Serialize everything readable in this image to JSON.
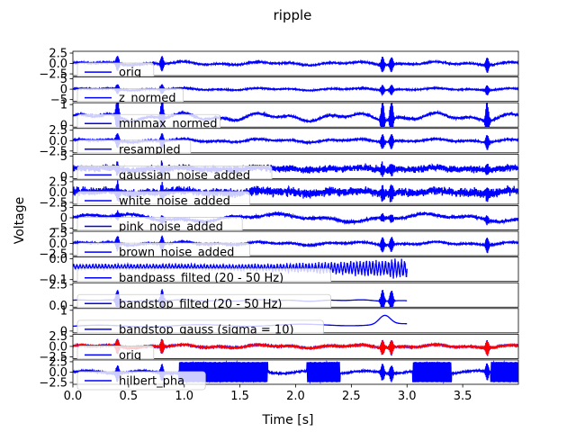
{
  "figure": {
    "title": "ripple",
    "xlabel": "Time [s]",
    "ylabel": "Voltage"
  },
  "chart_data": {
    "type": "line",
    "title": "ripple",
    "xlabel": "Time [s]",
    "ylabel": "Voltage",
    "xlim": [
      0,
      4.0
    ],
    "x_ticks": [
      "0.0",
      "0.5",
      "1.0",
      "1.5",
      "2.0",
      "2.5",
      "3.0",
      "3.5"
    ],
    "grid": false,
    "legend_placement": "lower left",
    "ripple_events_s": [
      0.4,
      0.8,
      2.78,
      2.86,
      3.72
    ],
    "panels": [
      {
        "label": "orig",
        "series_color": "#0000ff",
        "yticks": [
          "2.5",
          "0.0",
          "−2.5"
        ],
        "ylim": [
          -4,
          4
        ],
        "t_end": 4.0,
        "kind": "orig"
      },
      {
        "label": "z_normed",
        "series_color": "#0000ff",
        "yticks": [
          "5",
          "0",
          "−5"
        ],
        "ylim": [
          -6,
          6
        ],
        "t_end": 4.0,
        "kind": "orig"
      },
      {
        "label": "minmax_normed",
        "series_color": "#0000ff",
        "yticks": [
          "1",
          "0"
        ],
        "ylim": [
          -1.4,
          2.0
        ],
        "t_end": 4.0,
        "kind": "orig"
      },
      {
        "label": "resampled",
        "series_color": "#0000ff",
        "yticks": [
          "2.5",
          "0.0",
          "−2.5"
        ],
        "ylim": [
          -4,
          4
        ],
        "t_end": 4.0,
        "kind": "orig"
      },
      {
        "label": "gaussian_noise_added",
        "series_color": "#0000ff",
        "yticks": [
          "5",
          "0"
        ],
        "ylim": [
          -4,
          6
        ],
        "t_end": 4.0,
        "kind": "noise"
      },
      {
        "label": "white_noise_added",
        "series_color": "#0000ff",
        "yticks": [
          "2.5",
          "0.0",
          "−2.5"
        ],
        "ylim": [
          -4,
          4
        ],
        "t_end": 4.0,
        "kind": "noise"
      },
      {
        "label": "pink_noise_added",
        "series_color": "#0000ff",
        "yticks": [
          "5",
          "0",
          "−5"
        ],
        "ylim": [
          -7,
          7
        ],
        "t_end": 4.0,
        "kind": "pink"
      },
      {
        "label": "brown_noise_added",
        "series_color": "#0000ff",
        "yticks": [
          "2.5",
          "0.0",
          "−2.5"
        ],
        "ylim": [
          -4,
          4
        ],
        "t_end": 4.0,
        "kind": "orig"
      },
      {
        "label": "bandpass_filted (20 - 50 Hz)",
        "series_color": "#0000ff",
        "yticks": [
          "0.0",
          "−0.1"
        ],
        "ylim": [
          -0.15,
          0.1
        ],
        "t_end": 3.0,
        "kind": "bandpass"
      },
      {
        "label": "bandstop_filted (20 - 50 Hz)",
        "series_color": "#0000ff",
        "yticks": [
          "2.5",
          "0.0"
        ],
        "ylim": [
          -1.5,
          4
        ],
        "t_end": 3.0,
        "kind": "bandstop"
      },
      {
        "label": "bandstop_gauss (sigma = 10)",
        "series_color": "#0000ff",
        "yticks": [
          "1",
          "0"
        ],
        "ylim": [
          -0.6,
          1.6
        ],
        "t_end": 3.0,
        "kind": "gauss"
      },
      {
        "label": "orig",
        "series_color": "#0000ff",
        "overlay_color": "#ff0000",
        "yticks": [
          "2.5",
          "0.0",
          "−2.5"
        ],
        "ylim": [
          -4,
          4
        ],
        "t_end": 4.0,
        "kind": "overlay"
      },
      {
        "label": "hilbert_pha",
        "series_color": "#0000ff",
        "yticks": [
          "2.5",
          "0.0",
          "−2.5"
        ],
        "ylim": [
          -3.6,
          3.6
        ],
        "t_end": 4.0,
        "kind": "phase"
      }
    ]
  }
}
